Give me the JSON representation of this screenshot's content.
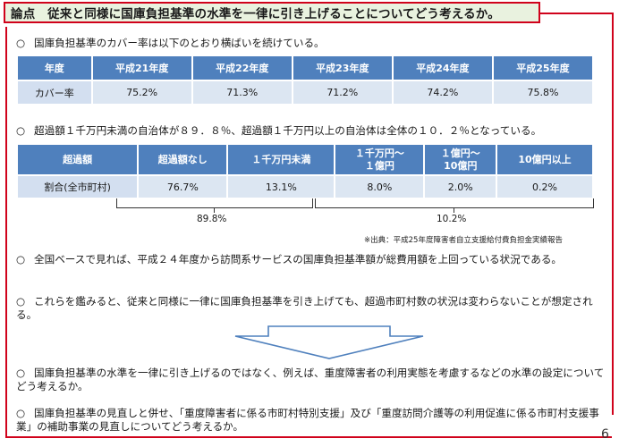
{
  "title": "論点　従来と同様に国庫負担基準の水準を一律に引き上げることについてどう考えるか。",
  "bullet_mark": "○",
  "bullets": [
    "国庫負担基準のカバー率は以下のとおり横ばいを続けている。",
    "超過額１千万円未満の自治体が８９．８％、超過額１千万円以上の自治体は全体の１０．２％となっている。",
    "全国ベースで見れば、平成２４年度から訪問系サービスの国庫負担基準額が総費用額を上回っている状況である。",
    "これらを鑑みると、従来と同様に一律に国庫負担基準を引き上げても、超過市町村数の状況は変わらないことが想定される。",
    "国庫負担基準の水準を一律に引き上げるのではなく、例えば、重度障害者の利用実態を考慮するなどの水準の設定についてどう考えるか。",
    "国庫負担基準の見直しと併せ、「重度障害者に係る市町村特別支援」及び「重度訪問介護等の利用促進に係る市町村支援事業」の補助事業の見直しについてどう考えるか。"
  ],
  "coverage_table": {
    "headers": [
      "年度",
      "平成21年度",
      "平成22年度",
      "平成23年度",
      "平成24年度",
      "平成25年度"
    ],
    "row": [
      "カバー率",
      "75.2%",
      "71.3%",
      "71.2%",
      "74.2%",
      "75.8%"
    ]
  },
  "excess_table": {
    "headers": [
      "超過額",
      "超過額なし",
      "１千万円未満",
      "１千万円～１億円",
      "１億円～10億円",
      "10億円以上"
    ],
    "header_lines": [
      [
        "超過額"
      ],
      [
        "超過額なし"
      ],
      [
        "１千万円未満"
      ],
      [
        "１千万円～",
        "１億円"
      ],
      [
        "１億円～",
        "10億円"
      ],
      [
        "10億円以上"
      ]
    ],
    "row": [
      "割合(全市町村)",
      "76.7%",
      "13.1%",
      "8.0%",
      "2.0%",
      "0.2%"
    ]
  },
  "group_totals": {
    "left": "89.8%",
    "right": "10.2%"
  },
  "source": "※出典：平成25年度障害者自立支援給付費負担金実績報告",
  "page_number": "6"
}
